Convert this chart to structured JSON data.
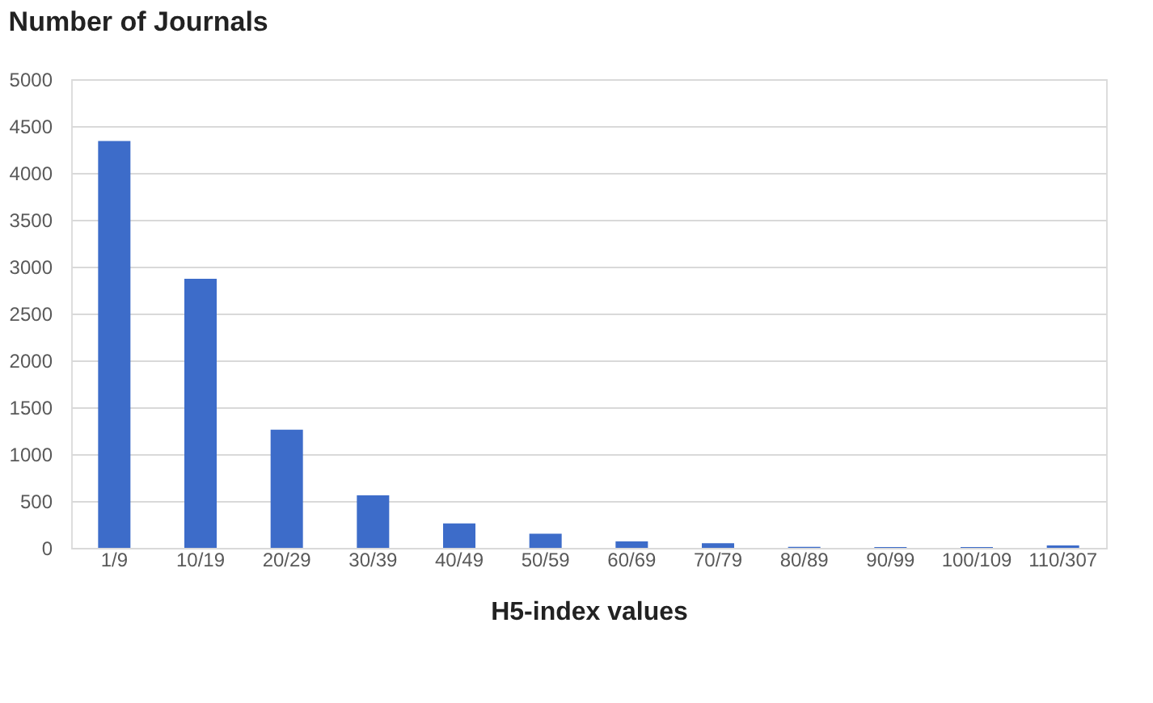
{
  "chart_data": {
    "type": "bar",
    "title": "Number of Journals",
    "xlabel": "H5-index values",
    "categories": [
      "1/9",
      "10/19",
      "20/29",
      "30/39",
      "40/49",
      "50/59",
      "60/69",
      "70/79",
      "80/89",
      "90/99",
      "100/109",
      "110/307"
    ],
    "values": [
      4340,
      2870,
      1260,
      560,
      260,
      150,
      70,
      50,
      10,
      8,
      8,
      25
    ],
    "color": "#3d6cc9",
    "ylim": [
      0,
      5000
    ],
    "yticks": [
      0,
      500,
      1000,
      1500,
      2000,
      2500,
      3000,
      3500,
      4000,
      4500,
      5000
    ],
    "grid": "y"
  }
}
